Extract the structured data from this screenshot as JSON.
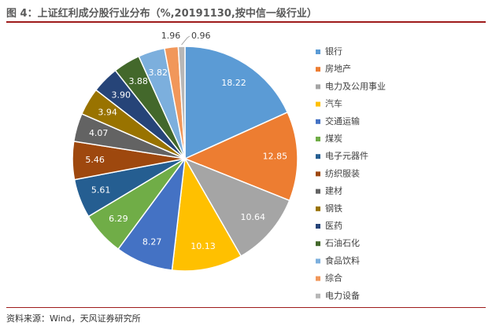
{
  "header": {
    "title": "图 4：上证红利成分股行业分布（%,20191130,按中信一级行业）"
  },
  "footer": {
    "source": "资料来源：Wind，天风证券研究所"
  },
  "chart_data": {
    "type": "pie",
    "title": "",
    "legend_position": "right",
    "categories": [
      "银行",
      "房地产",
      "电力及公用事业",
      "汽车",
      "交通运输",
      "煤炭",
      "电子元器件",
      "纺织服装",
      "建材",
      "钢铁",
      "医药",
      "石油石化",
      "食品饮料",
      "综合",
      "电力设备"
    ],
    "values": [
      18.22,
      12.85,
      10.64,
      10.13,
      8.27,
      6.29,
      5.61,
      5.46,
      4.07,
      3.94,
      3.9,
      3.88,
      3.82,
      1.96,
      0.96
    ],
    "labels": [
      "18.22",
      "12.85",
      "10.64",
      "10.13",
      "8.27",
      "6.29",
      "5.61",
      "5.46",
      "4.07",
      "3.94",
      "3.90",
      "3.88",
      "3.82",
      "1.96",
      "0.96"
    ],
    "colors": [
      "#5b9bd5",
      "#ed7d31",
      "#a5a5a5",
      "#ffc000",
      "#4472c4",
      "#70ad47",
      "#255e91",
      "#9e480e",
      "#636363",
      "#997300",
      "#264478",
      "#43682b",
      "#7cafdd",
      "#f1975a",
      "#b7b7b7"
    ]
  }
}
